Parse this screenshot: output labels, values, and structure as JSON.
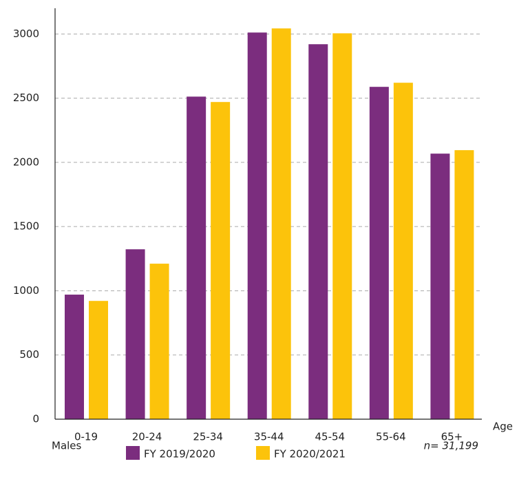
{
  "chart_data": {
    "type": "bar",
    "x_label": "Age",
    "annotations": [
      "Males",
      "n= 31,199"
    ],
    "categories": [
      "0-19",
      "20-24",
      "25-34",
      "35-44",
      "45-54",
      "55-64",
      "65+"
    ],
    "series": [
      {
        "name": "FY 2019/2020",
        "color": "#7b2d7e",
        "values": [
          970,
          1323,
          2512,
          3011,
          2920,
          2588,
          2068
        ]
      },
      {
        "name": "FY 2020/2021",
        "color": "#fcc30b",
        "values": [
          921,
          1211,
          2470,
          3043,
          3005,
          2620,
          2095
        ]
      }
    ],
    "ylim": [
      0,
      3200
    ],
    "yticks": [
      0,
      500,
      1000,
      1500,
      2000,
      2500,
      3000
    ],
    "grid": true
  }
}
